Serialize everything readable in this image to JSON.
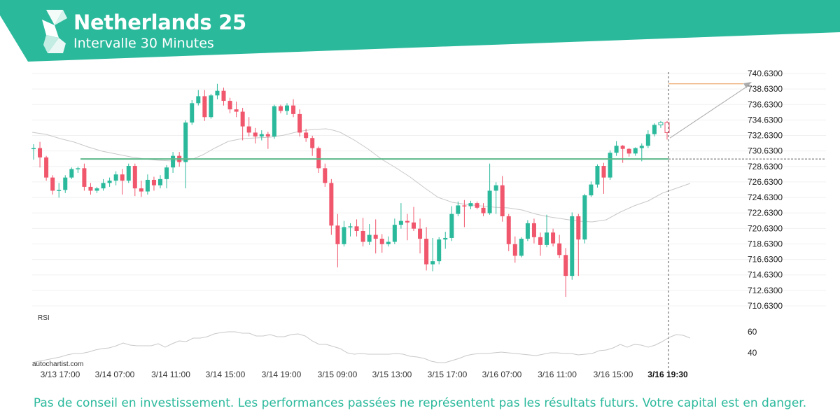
{
  "header": {
    "title": "Netherlands 25",
    "subtitle": "Intervalle 30 Minutes",
    "logo_icon": "autochartist-logo-icon",
    "band_color": "#2bb99c"
  },
  "footer": {
    "disclaimer": "Pas de conseil en investissement. Les performances passées ne représentent pas les résultats futurs. Votre capital est en danger.",
    "brand": "autochartist.com"
  },
  "chart_data": {
    "type": "candlestick",
    "y_ticks": [
      "740.6300",
      "738.6300",
      "736.6300",
      "734.6300",
      "732.6300",
      "730.6300",
      "728.6300",
      "726.6300",
      "724.6300",
      "722.6300",
      "720.6300",
      "718.6300",
      "716.6300",
      "714.6300",
      "712.6300",
      "710.6300"
    ],
    "y_range": [
      710.63,
      740.63
    ],
    "x_labels": [
      "3/13 17:00",
      "3/14 07:00",
      "3/14 11:00",
      "3/14 15:00",
      "3/14 19:00",
      "3/15 09:00",
      "3/15 13:00",
      "3/15 17:00",
      "3/16 07:00",
      "3/16 11:00",
      "3/16 15:00",
      "3/16 19:30"
    ],
    "highlight_label": "3/16 19:30",
    "resistance_level": 729.6,
    "target_level": 739.3,
    "colors": {
      "up": "#2bb99c",
      "down": "#f0566c",
      "resistance": "#5cb88a",
      "target": "#e89550",
      "ma": "#c8c8c8"
    },
    "candles": [
      [
        731,
        731,
        729.5,
        731.5
      ],
      [
        731,
        729.8,
        728.5,
        731.8
      ],
      [
        729.8,
        727.2,
        726.8,
        730
      ],
      [
        727.2,
        725.5,
        725,
        727.5
      ],
      [
        725.5,
        725.6,
        724.6,
        726.5
      ],
      [
        725.6,
        727.2,
        725.2,
        727.5
      ],
      [
        727.2,
        728.3,
        727,
        728.5
      ],
      [
        728.3,
        728.4,
        727.8,
        728.6
      ],
      [
        728.4,
        726,
        725.5,
        729
      ],
      [
        726,
        725.5,
        725,
        726.5
      ],
      [
        725.5,
        725.8,
        725.2,
        726
      ],
      [
        725.8,
        726.5,
        725.5,
        727
      ],
      [
        726.5,
        726.8,
        726,
        727.2
      ],
      [
        726.8,
        727.6,
        726.2,
        728
      ],
      [
        727.6,
        726.8,
        725,
        728.3
      ],
      [
        726.8,
        728.7,
        726.5,
        729
      ],
      [
        728.7,
        725.8,
        724.8,
        729
      ],
      [
        725.8,
        725.4,
        724.7,
        726.8
      ],
      [
        725.4,
        726.9,
        725,
        727.6
      ],
      [
        726.9,
        726.2,
        725.5,
        727.3
      ],
      [
        726.2,
        727,
        725.8,
        727.5
      ],
      [
        727,
        728.5,
        725.8,
        728.8
      ],
      [
        728.5,
        730,
        727.8,
        730.5
      ],
      [
        730,
        729.2,
        728.6,
        730.5
      ],
      [
        729.2,
        734.3,
        725.8,
        734.6
      ],
      [
        734.3,
        736.8,
        734,
        737.2
      ],
      [
        736.8,
        737.7,
        736.5,
        738.5
      ],
      [
        737.7,
        735,
        734.5,
        738.5
      ],
      [
        735,
        737.8,
        734.8,
        738
      ],
      [
        737.8,
        738.4,
        737.3,
        739.3
      ],
      [
        738.4,
        737.1,
        736.5,
        738.8
      ],
      [
        737.1,
        736,
        735.5,
        737.5
      ],
      [
        736,
        735.7,
        735,
        737
      ],
      [
        735.7,
        733.8,
        732,
        736.2
      ],
      [
        733.8,
        733,
        732.5,
        735
      ],
      [
        733,
        732.5,
        731.6,
        733.6
      ],
      [
        732.5,
        732.8,
        732,
        733.3
      ],
      [
        732.8,
        732.5,
        730.9,
        733.1
      ],
      [
        732.5,
        736.4,
        732.2,
        736.6
      ],
      [
        736.4,
        735.8,
        735.5,
        736.6
      ],
      [
        735.8,
        736.5,
        735.3,
        736.8
      ],
      [
        736.5,
        735.4,
        735,
        737.3
      ],
      [
        735.4,
        733,
        732.5,
        736
      ],
      [
        733,
        732.3,
        731.8,
        733.5
      ],
      [
        732.3,
        731,
        730,
        732.6
      ],
      [
        731,
        728.4,
        727.8,
        731.2
      ],
      [
        728.4,
        726.5,
        726,
        729
      ],
      [
        726.5,
        721,
        719.8,
        727
      ],
      [
        721,
        718.6,
        715.6,
        722.5
      ],
      [
        718.6,
        720.8,
        718.3,
        721.6
      ],
      [
        720.8,
        720.9,
        719.6,
        721.3
      ],
      [
        720.9,
        720.3,
        719.6,
        721.8
      ],
      [
        720.3,
        718.9,
        718.3,
        722
      ],
      [
        718.9,
        719.8,
        718.5,
        721.2
      ],
      [
        719.8,
        719.3,
        717.4,
        721.8
      ],
      [
        719.3,
        718.6,
        717.5,
        719.9
      ],
      [
        718.6,
        718.9,
        718.3,
        719.6
      ],
      [
        718.9,
        721.1,
        718.6,
        721.9
      ],
      [
        721.1,
        721.6,
        720.6,
        723.9
      ],
      [
        721.6,
        721.4,
        719.1,
        722.5
      ],
      [
        721.4,
        720.6,
        720.3,
        723.4
      ],
      [
        720.6,
        719.3,
        717.4,
        721.9
      ],
      [
        719.3,
        716,
        715.2,
        720.8
      ],
      [
        716,
        716.4,
        715.1,
        719.4
      ],
      [
        716.4,
        719.2,
        716,
        719.5
      ],
      [
        719.2,
        719.4,
        718,
        720.2
      ],
      [
        719.4,
        722.5,
        719,
        723.5
      ],
      [
        722.5,
        723.6,
        722.2,
        724.1
      ],
      [
        723.6,
        723.5,
        720.8,
        724.3
      ],
      [
        723.5,
        723.9,
        723.1,
        724.2
      ],
      [
        723.9,
        723.3,
        723.1,
        724.1
      ],
      [
        723.3,
        722.6,
        722.2,
        723.9
      ],
      [
        722.6,
        725.5,
        722.4,
        729
      ],
      [
        725.5,
        726.2,
        722.5,
        726.6
      ],
      [
        726.2,
        722.2,
        721.5,
        727.4
      ],
      [
        722.2,
        718.6,
        717.7,
        722.5
      ],
      [
        718.6,
        717.1,
        716.2,
        719.6
      ],
      [
        717.1,
        719.3,
        716.9,
        719.5
      ],
      [
        719.3,
        721.3,
        719,
        721.7
      ],
      [
        721.3,
        719.5,
        718.7,
        721.9
      ],
      [
        719.5,
        718.5,
        717.1,
        720.1
      ],
      [
        718.5,
        720.1,
        718.2,
        722.4
      ],
      [
        720.1,
        718.7,
        718.3,
        720.6
      ],
      [
        718.7,
        717.2,
        716.8,
        719.8
      ],
      [
        717.2,
        714.5,
        711.8,
        718.1
      ],
      [
        714.5,
        722.2,
        714,
        722.7
      ],
      [
        722.2,
        719.2,
        714.5,
        722.5
      ],
      [
        719.2,
        724.9,
        718.7,
        725.1
      ],
      [
        724.9,
        726.3,
        724.7,
        726.7
      ],
      [
        726.3,
        728.7,
        725.9,
        728.9
      ],
      [
        728.7,
        727.2,
        725.1,
        729.1
      ],
      [
        727.2,
        730.4,
        726.9,
        730.7
      ],
      [
        730.4,
        731.3,
        730,
        731.9
      ],
      [
        731.3,
        730.9,
        729.1,
        731.4
      ],
      [
        730.9,
        730.3,
        729.9,
        731
      ],
      [
        730.3,
        731,
        730,
        731.1
      ],
      [
        731,
        731.3,
        729.3,
        731.6
      ],
      [
        731.3,
        732.8,
        731,
        733.3
      ],
      [
        732.8,
        734,
        732.5,
        734.2
      ],
      [
        734,
        734.3,
        733.6,
        734.5
      ],
      [
        734.3,
        733,
        732.1,
        734.5
      ]
    ],
    "ma_points": [
      [
        46,
        189
      ],
      [
        66,
        192
      ],
      [
        86,
        198
      ],
      [
        106,
        203
      ],
      [
        126,
        210
      ],
      [
        146,
        216
      ],
      [
        166,
        220
      ],
      [
        186,
        224
      ],
      [
        206,
        227
      ],
      [
        226,
        229
      ],
      [
        246,
        230
      ],
      [
        266,
        229
      ],
      [
        276,
        227
      ],
      [
        290,
        221
      ],
      [
        306,
        212
      ],
      [
        326,
        202
      ],
      [
        346,
        198
      ],
      [
        366,
        197
      ],
      [
        386,
        196
      ],
      [
        406,
        193
      ],
      [
        426,
        188
      ],
      [
        446,
        185
      ],
      [
        466,
        184
      ],
      [
        476,
        186
      ],
      [
        486,
        189
      ],
      [
        506,
        200
      ],
      [
        526,
        213
      ],
      [
        546,
        228
      ],
      [
        566,
        240
      ],
      [
        586,
        253
      ],
      [
        606,
        268
      ],
      [
        626,
        282
      ],
      [
        646,
        289
      ],
      [
        666,
        292
      ],
      [
        686,
        294
      ],
      [
        706,
        296
      ],
      [
        726,
        297
      ],
      [
        746,
        300
      ],
      [
        766,
        306
      ],
      [
        786,
        310
      ],
      [
        806,
        313
      ],
      [
        826,
        316
      ],
      [
        846,
        317
      ],
      [
        866,
        314
      ],
      [
        886,
        303
      ],
      [
        906,
        294
      ],
      [
        926,
        287
      ],
      [
        946,
        276
      ],
      [
        966,
        269
      ],
      [
        986,
        262
      ]
    ],
    "rsi_ticks": [
      "60",
      "40"
    ],
    "rsi_points": [
      [
        46,
        518
      ],
      [
        56,
        516
      ],
      [
        66,
        514
      ],
      [
        76,
        512
      ],
      [
        86,
        510
      ],
      [
        96,
        507
      ],
      [
        106,
        505
      ],
      [
        116,
        505
      ],
      [
        126,
        503
      ],
      [
        136,
        500
      ],
      [
        146,
        498
      ],
      [
        156,
        497
      ],
      [
        166,
        494
      ],
      [
        176,
        490
      ],
      [
        186,
        493
      ],
      [
        196,
        494
      ],
      [
        206,
        494
      ],
      [
        216,
        494
      ],
      [
        226,
        491
      ],
      [
        236,
        496
      ],
      [
        246,
        491
      ],
      [
        256,
        487
      ],
      [
        266,
        488
      ],
      [
        276,
        483
      ],
      [
        286,
        483
      ],
      [
        296,
        481
      ],
      [
        306,
        477
      ],
      [
        316,
        475
      ],
      [
        326,
        474
      ],
      [
        336,
        474
      ],
      [
        346,
        476
      ],
      [
        356,
        476
      ],
      [
        366,
        480
      ],
      [
        376,
        480
      ],
      [
        386,
        478
      ],
      [
        396,
        481
      ],
      [
        406,
        481
      ],
      [
        416,
        478
      ],
      [
        426,
        477
      ],
      [
        436,
        480
      ],
      [
        446,
        487
      ],
      [
        456,
        492
      ],
      [
        466,
        492
      ],
      [
        476,
        495
      ],
      [
        486,
        498
      ],
      [
        496,
        504
      ],
      [
        506,
        506
      ],
      [
        516,
        505
      ],
      [
        526,
        506
      ],
      [
        536,
        506
      ],
      [
        546,
        506
      ],
      [
        556,
        506
      ],
      [
        566,
        505
      ],
      [
        576,
        506
      ],
      [
        586,
        509
      ],
      [
        596,
        510
      ],
      [
        606,
        512
      ],
      [
        616,
        516
      ],
      [
        626,
        518
      ],
      [
        636,
        518
      ],
      [
        646,
        515
      ],
      [
        656,
        512
      ],
      [
        666,
        508
      ],
      [
        676,
        506
      ],
      [
        686,
        505
      ],
      [
        696,
        505
      ],
      [
        706,
        504
      ],
      [
        716,
        503
      ],
      [
        726,
        504
      ],
      [
        736,
        505
      ],
      [
        746,
        506
      ],
      [
        756,
        507
      ],
      [
        766,
        508
      ],
      [
        776,
        506
      ],
      [
        786,
        504
      ],
      [
        796,
        504
      ],
      [
        806,
        505
      ],
      [
        816,
        505
      ],
      [
        826,
        507
      ],
      [
        836,
        506
      ],
      [
        846,
        505
      ],
      [
        856,
        501
      ],
      [
        866,
        500
      ],
      [
        876,
        497
      ],
      [
        886,
        492
      ],
      [
        896,
        496
      ],
      [
        906,
        492
      ],
      [
        916,
        493
      ],
      [
        926,
        496
      ],
      [
        936,
        493
      ],
      [
        946,
        488
      ],
      [
        956,
        482
      ],
      [
        966,
        478
      ],
      [
        976,
        479
      ],
      [
        986,
        483
      ]
    ]
  }
}
